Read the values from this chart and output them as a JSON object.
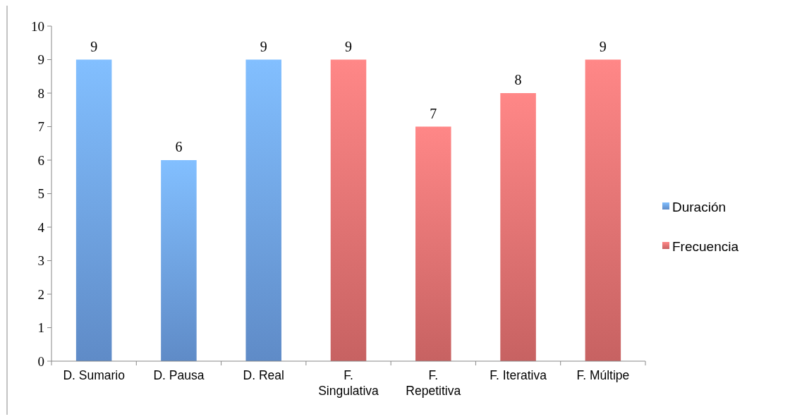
{
  "chart_data": {
    "type": "bar",
    "categories": [
      "D. Sumario",
      "D. Pausa",
      "D. Real",
      "F. Singulativa",
      "F. Repetitiva",
      "F. Iterativa",
      "F. Múltipe"
    ],
    "series": [
      {
        "name": "Duración",
        "color": "#6fa3ea",
        "values": [
          9,
          6,
          9,
          null,
          null,
          null,
          null
        ]
      },
      {
        "name": "Frecuencia",
        "color": "#ea7373",
        "values": [
          null,
          null,
          null,
          9,
          7,
          8,
          9
        ]
      }
    ],
    "ylim": [
      0,
      10
    ],
    "yticks": [
      0,
      1,
      2,
      3,
      4,
      5,
      6,
      7,
      8,
      9,
      10
    ],
    "data_labels": true,
    "legend": "right",
    "grid": false
  }
}
